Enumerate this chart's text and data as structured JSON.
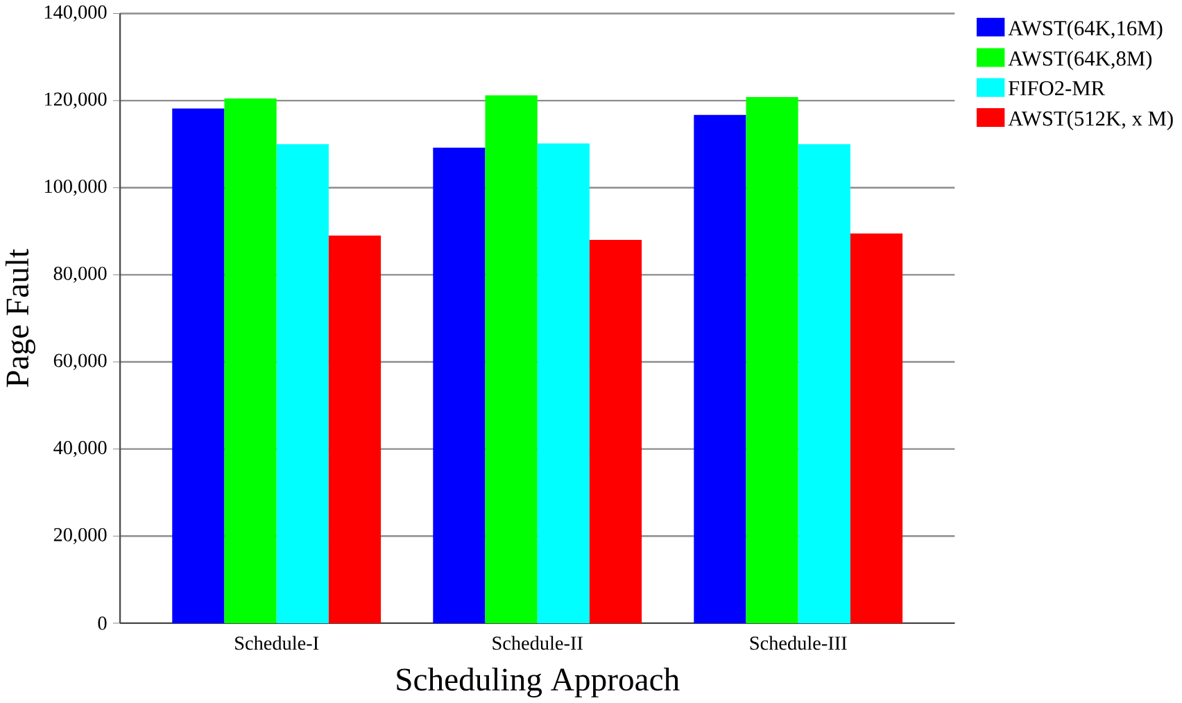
{
  "chart_data": {
    "type": "bar",
    "xlabel": "Scheduling Approach",
    "ylabel": "Page Fault",
    "categories": [
      "Schedule-I",
      "Schedule-II",
      "Schedule-III"
    ],
    "series": [
      {
        "name": "AWST(64K,16M)",
        "color": "#0000ff",
        "values": [
          118200,
          109200,
          116700
        ]
      },
      {
        "name": "AWST(64K,8M)",
        "color": "#00ff00",
        "values": [
          120500,
          121200,
          120800
        ]
      },
      {
        "name": "FIFO2-MR",
        "color": "#00ffff",
        "values": [
          110000,
          110200,
          110000
        ]
      },
      {
        "name": "AWST(512K, x M)",
        "color": "#ff0000",
        "values": [
          89000,
          88000,
          89500
        ]
      }
    ],
    "ylim": [
      0,
      140000
    ],
    "yticks": [
      {
        "value": 0,
        "label": "0"
      },
      {
        "value": 20000,
        "label": "20,000"
      },
      {
        "value": 40000,
        "label": "40,000"
      },
      {
        "value": 60000,
        "label": "60,000"
      },
      {
        "value": 80000,
        "label": "80,000"
      },
      {
        "value": 100000,
        "label": "100,000"
      },
      {
        "value": 120000,
        "label": "120,000"
      },
      {
        "value": 140000,
        "label": "140,000"
      }
    ],
    "grid": "y",
    "legend": "top right"
  }
}
